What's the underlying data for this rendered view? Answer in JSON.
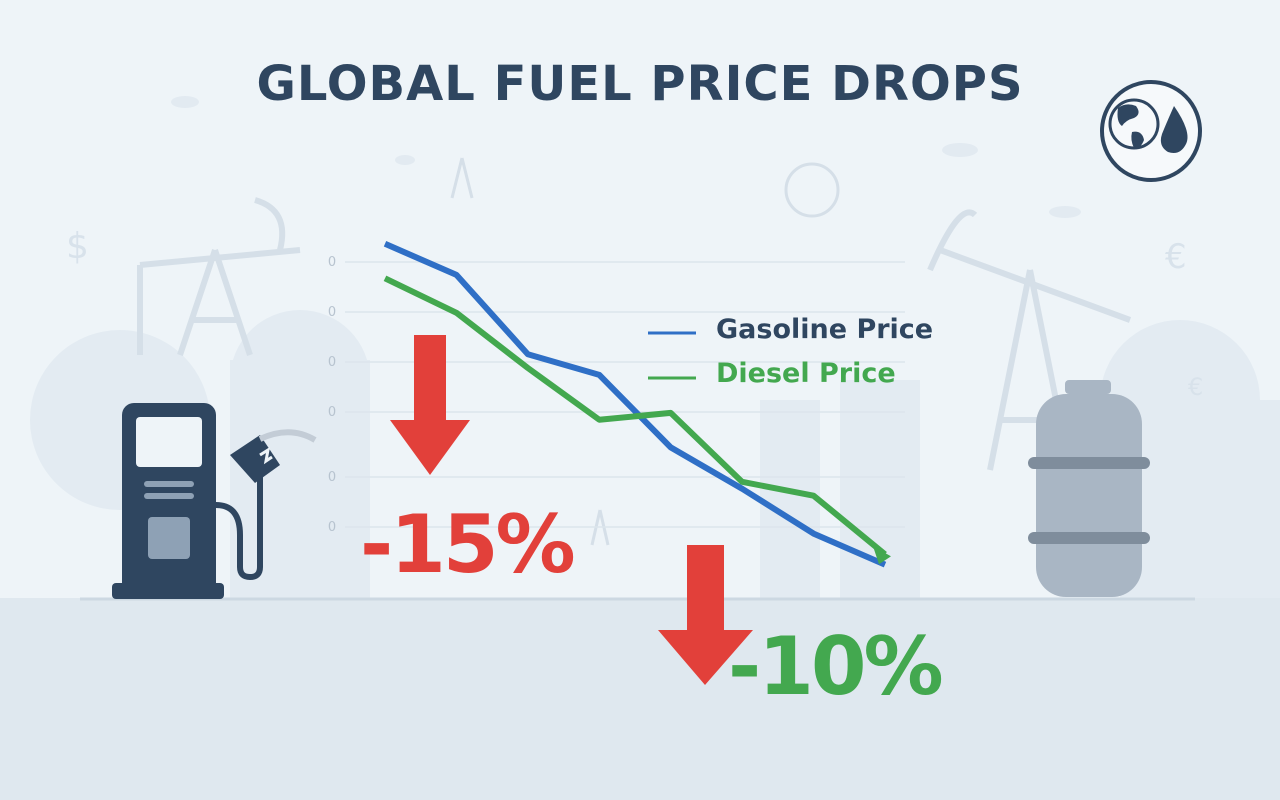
{
  "colors": {
    "background": "#eef4f8",
    "title": "#2f4660",
    "gasoline": "#2f6fc6",
    "diesel": "#43a84f",
    "decrease": "#e2403a",
    "pump": "#2f4660",
    "tank": "#a9b6c4"
  },
  "chart_data": {
    "type": "line",
    "title": "GLOBAL FUEL PRICE DROPS",
    "xlabel": "",
    "ylabel": "",
    "y_tick_labels": [
      "0",
      "0",
      "0",
      "0",
      "0",
      "0"
    ],
    "grid": true,
    "legend_placement": "right",
    "x": [
      0,
      1,
      2,
      3,
      4,
      5,
      6,
      7
    ],
    "ylim": [
      0,
      100
    ],
    "series": [
      {
        "name": "Gasoline Price",
        "color": "#2f6fc6",
        "values": [
          96,
          87,
          64,
          58,
          37,
          25,
          12,
          3
        ]
      },
      {
        "name": "Diesel Price",
        "color": "#43a84f",
        "values": [
          86,
          76,
          60,
          45,
          47,
          27,
          23,
          6
        ]
      }
    ],
    "annotations": [
      {
        "text": "-15%",
        "color": "#e2403a",
        "icon": "down-arrow-icon"
      },
      {
        "text": "-10%",
        "color": "#43a84f",
        "icon": "down-arrow-icon"
      }
    ]
  },
  "icons": [
    "globe-drop-icon",
    "fuel-pump-icon",
    "gas-tank-icon",
    "oil-pumpjack-icon",
    "dollar-icon",
    "euro-icon"
  ]
}
